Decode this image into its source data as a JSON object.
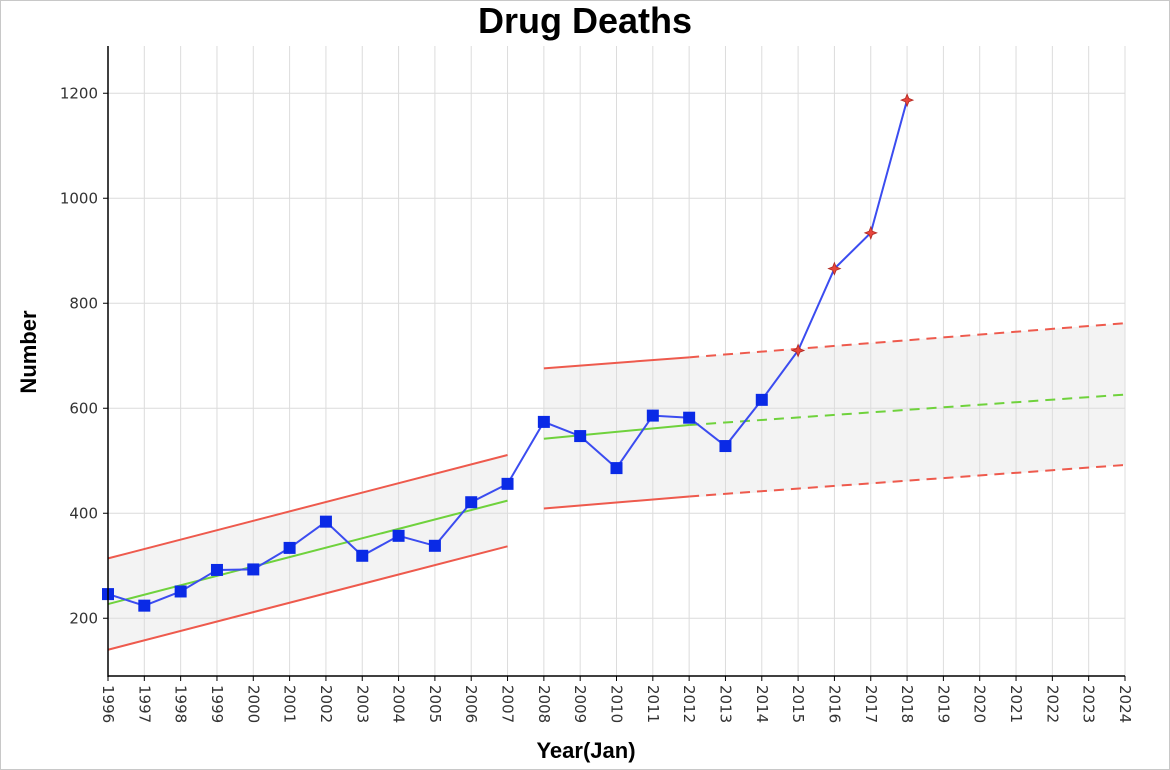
{
  "chart_data": {
    "type": "line",
    "title": "Drug Deaths",
    "xlabel": "Year(Jan)",
    "ylabel": "Number",
    "xlim": [
      1996,
      2024
    ],
    "ylim": [
      90,
      1290
    ],
    "x_ticks": [
      1996,
      1997,
      1998,
      1999,
      2000,
      2001,
      2002,
      2003,
      2004,
      2005,
      2006,
      2007,
      2008,
      2009,
      2010,
      2011,
      2012,
      2013,
      2014,
      2015,
      2016,
      2017,
      2018,
      2019,
      2020,
      2021,
      2022,
      2023,
      2024
    ],
    "y_ticks": [
      200,
      400,
      600,
      800,
      1000,
      1200
    ],
    "grid": true,
    "series": [
      {
        "name": "",
        "color": "#3b4cf0",
        "x": [
          1996,
          1997,
          1998,
          1999,
          2000,
          2001,
          2002,
          2003,
          2004,
          2005,
          2006,
          2007,
          2008,
          2009,
          2010,
          2011,
          2012,
          2013,
          2014,
          2015,
          2016,
          2017,
          2018
        ],
        "values": [
          246,
          224,
          251,
          292,
          293,
          334,
          384,
          319,
          357,
          338,
          421,
          456,
          574,
          547,
          486,
          586,
          582,
          528,
          616,
          710,
          866,
          934,
          1187
        ],
        "markers": [
          "square",
          "square",
          "square",
          "square",
          "square",
          "square",
          "square",
          "square",
          "square",
          "square",
          "square",
          "square",
          "square",
          "square",
          "square",
          "square",
          "square",
          "square",
          "square",
          "star",
          "star",
          "star",
          "star"
        ]
      }
    ],
    "control_limits": [
      {
        "from": 1996,
        "to": 2007,
        "projected_to": null,
        "center": [
          227,
          424
        ],
        "upper": [
          314,
          511
        ],
        "lower": [
          140,
          337
        ]
      },
      {
        "from": 2008,
        "to": 2012,
        "projected_to": 2024,
        "center": [
          542,
          568,
          626
        ],
        "upper": [
          676,
          697,
          762
        ],
        "lower": [
          409,
          432,
          492
        ]
      }
    ],
    "colors": {
      "series": "#3b4cf0",
      "square_marker": "#0a2ae6",
      "star_marker": "#e8453c",
      "center_line": "#6fd23c",
      "limit_line": "#ee5a4d",
      "band_fill": "#f3f3f3",
      "grid": "#dcdcdc"
    }
  }
}
